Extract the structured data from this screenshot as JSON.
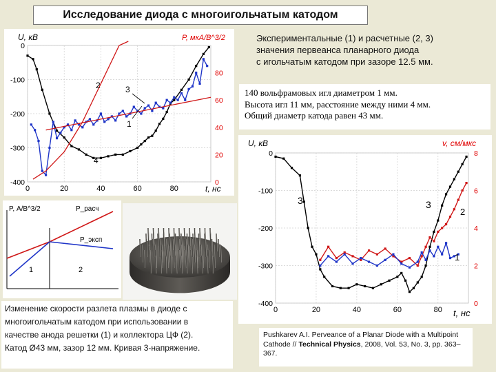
{
  "title": "Исследование диода с многоигольчатым катодом",
  "experiment_text": [
    "Экспериментальные (1) и расчетные (2, 3)",
    "значения первеанса планарного диода",
    "с игольчатым катодом при зазоре 12.5 мм."
  ],
  "cathode_text": [
    "140 вольфрамовых игл диаметром 1 мм.",
    "Высота игл 11 мм, расстояние между ними 4 мм.",
    "Общий диаметр катода равен 43 мм."
  ],
  "caption_text": [
    "Изменение скорости разлета плазмы в диоде с",
    "многоигольчатым катодом при использовании в",
    "качестве анода решетки (1) и коллектора ЦФ (2).",
    "Катод Ø43 мм, зазор 12 мм. Кривая 3-напряжение."
  ],
  "reference": {
    "prefix": "Pushkarev A.I. Perveance of a Planar Diode with a Multipoint Cathode // ",
    "journal": "Technical Physics",
    "suffix": ", 2008, Vol. 53, No. 3, pp. 363–367."
  },
  "colors": {
    "voltage": "#000000",
    "experiment": "#1f35c8",
    "calc": "#d01818",
    "right_axis": "#e00000"
  },
  "chart_data": [
    {
      "type": "line",
      "title": "",
      "xlabel": "t, нс",
      "ylabel": "U, кВ",
      "y2label": "P, мкА/В^3/2",
      "xticks": [
        "0",
        "20",
        "40",
        "60",
        "80"
      ],
      "yticks": [
        "0",
        "-100",
        "-200",
        "-300",
        "-400"
      ],
      "y2ticks": [
        "80",
        "60",
        "40",
        "20",
        "0"
      ],
      "xlim": [
        0,
        100
      ],
      "ylim": [
        -400,
        0
      ],
      "y2lim": [
        0,
        100
      ],
      "labels": [
        "1",
        "2",
        "3",
        "4"
      ],
      "series": [
        {
          "name": "4",
          "axis": "left",
          "x": [
            0,
            3,
            5,
            8,
            12,
            16,
            20,
            24,
            28,
            32,
            36,
            40,
            44,
            48,
            52,
            56,
            60,
            62,
            64,
            66,
            68,
            70,
            72,
            74,
            76,
            78,
            80,
            84,
            88,
            92,
            96,
            99
          ],
          "y": [
            -30,
            -40,
            -70,
            -130,
            -200,
            -250,
            -270,
            -295,
            -305,
            -320,
            -330,
            -330,
            -325,
            -320,
            -320,
            -310,
            -300,
            -290,
            -280,
            -270,
            -265,
            -250,
            -230,
            -215,
            -195,
            -170,
            -160,
            -130,
            -100,
            -60,
            -25,
            -5
          ]
        },
        {
          "name": "1",
          "axis": "right",
          "x": [
            2,
            4,
            6,
            8,
            10,
            12,
            14,
            16,
            18,
            20,
            22,
            24,
            26,
            28,
            30,
            32,
            34,
            36,
            38,
            40,
            42,
            44,
            46,
            48,
            50,
            52,
            54,
            56,
            58,
            60,
            62,
            64,
            66,
            68,
            70,
            72,
            74,
            76,
            78,
            80,
            82,
            84,
            86,
            88,
            90,
            92,
            94,
            96,
            98
          ],
          "y": [
            42,
            38,
            30,
            8,
            5,
            25,
            44,
            32,
            36,
            40,
            42,
            38,
            45,
            42,
            40,
            44,
            46,
            42,
            45,
            50,
            44,
            46,
            48,
            45,
            50,
            52,
            48,
            50,
            55,
            52,
            50,
            54,
            56,
            52,
            58,
            55,
            54,
            60,
            58,
            62,
            60,
            65,
            60,
            68,
            70,
            80,
            72,
            90,
            85
          ]
        },
        {
          "name": "3",
          "axis": "right",
          "x": [
            10,
            100
          ],
          "y": [
            38,
            62
          ]
        },
        {
          "name": "2",
          "axis": "right",
          "x": [
            3,
            10,
            20,
            30,
            40,
            50,
            55
          ],
          "y": [
            2,
            8,
            22,
            44,
            72,
            100,
            115
          ]
        }
      ]
    },
    {
      "type": "line",
      "title": "",
      "xlabel": "t, нс",
      "ylabel": "U, кВ",
      "y2label": "v, см/мкс",
      "xticks": [
        "0",
        "20",
        "40",
        "60",
        "80"
      ],
      "yticks": [
        "0",
        "-100",
        "-200",
        "-300",
        "-400"
      ],
      "y2ticks": [
        "8",
        "6",
        "4",
        "2",
        "0"
      ],
      "xlim": [
        0,
        95
      ],
      "ylim": [
        -400,
        0
      ],
      "y2lim": [
        0,
        8
      ],
      "labels": [
        "1",
        "2",
        "3",
        "3"
      ],
      "series": [
        {
          "name": "3",
          "axis": "left",
          "x": [
            0,
            4,
            8,
            12,
            14,
            16,
            18,
            20,
            22,
            24,
            28,
            32,
            36,
            40,
            44,
            48,
            52,
            56,
            60,
            62,
            64,
            66,
            68,
            70,
            72,
            74,
            76,
            78,
            80,
            82,
            84,
            86,
            88,
            90,
            92,
            94
          ],
          "y": [
            -10,
            -15,
            -40,
            -60,
            -130,
            -200,
            -250,
            -270,
            -310,
            -330,
            -355,
            -360,
            -360,
            -350,
            -355,
            -360,
            -350,
            -340,
            -330,
            -320,
            -340,
            -370,
            -360,
            -345,
            -330,
            -300,
            -250,
            -210,
            -180,
            -140,
            -110,
            -90,
            -70,
            -50,
            -30,
            -10
          ]
        },
        {
          "name": "2",
          "axis": "right",
          "x": [
            22,
            26,
            30,
            34,
            38,
            42,
            46,
            50,
            54,
            58,
            62,
            66,
            70,
            72,
            74,
            76,
            78,
            80,
            82,
            84,
            86,
            88,
            90,
            92,
            94
          ],
          "y": [
            2.3,
            3.0,
            2.4,
            2.7,
            2.5,
            2.3,
            2.8,
            2.6,
            2.9,
            2.5,
            2.2,
            2.4,
            2.0,
            2.5,
            3.0,
            3.5,
            3.3,
            3.8,
            4.0,
            4.2,
            4.6,
            5.0,
            5.5,
            6.0,
            6.4
          ]
        },
        {
          "name": "1",
          "axis": "right",
          "x": [
            22,
            26,
            30,
            34,
            38,
            42,
            46,
            50,
            54,
            58,
            62,
            66,
            70,
            72,
            74,
            76,
            78,
            80,
            82,
            84,
            86,
            88,
            90
          ],
          "y": [
            2.0,
            2.5,
            2.2,
            2.6,
            2.1,
            2.4,
            2.2,
            2.0,
            2.3,
            2.6,
            2.1,
            1.9,
            2.2,
            2.7,
            2.3,
            2.8,
            2.5,
            3.0,
            2.6,
            3.2,
            2.4,
            2.5,
            2.6
          ]
        }
      ]
    },
    {
      "type": "line",
      "title": "",
      "ylabel": "P, А/В^3/2",
      "labels": [
        "1",
        "2",
        "P_расч",
        "P_эксп"
      ],
      "series": [
        {
          "name": "P_расч",
          "x": [
            0,
            1
          ],
          "y": [
            0.5,
            1.0
          ]
        },
        {
          "name": "P_эксп",
          "x": [
            0,
            1
          ],
          "y": [
            0.5,
            0.2
          ]
        }
      ]
    }
  ]
}
